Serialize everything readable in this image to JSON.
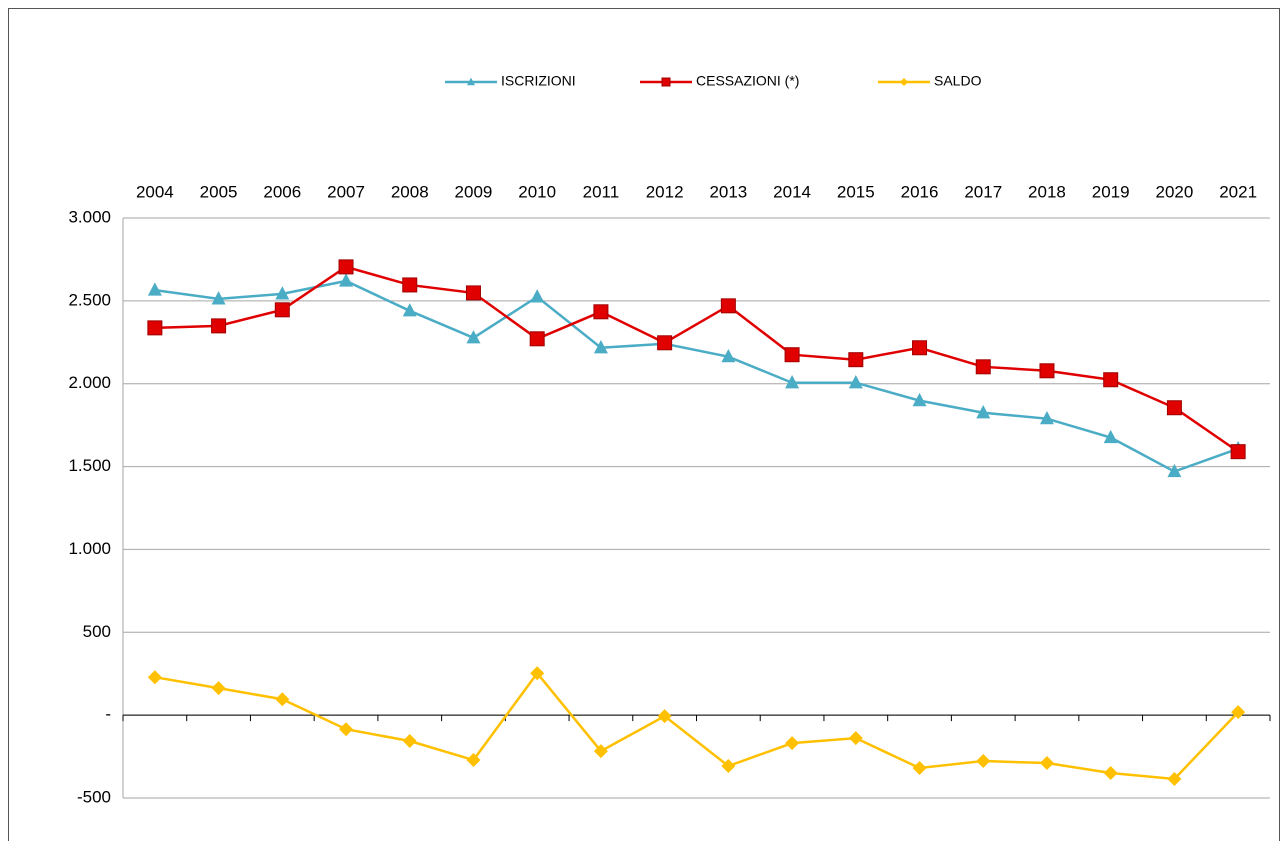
{
  "chart_data": {
    "type": "line",
    "categories": [
      "2004",
      "2005",
      "2006",
      "2007",
      "2008",
      "2009",
      "2010",
      "2011",
      "2012",
      "2013",
      "2014",
      "2015",
      "2016",
      "2017",
      "2018",
      "2019",
      "2020",
      "2021"
    ],
    "series": [
      {
        "name": "ISCRIZIONI",
        "color": "#4bacc6",
        "marker": "triangle",
        "values": [
          2565,
          2512,
          2542,
          2620,
          2440,
          2277,
          2524,
          2217,
          2241,
          2163,
          2006,
          2006,
          1898,
          1825,
          1789,
          1675,
          1470,
          1608
        ]
      },
      {
        "name": "CESSAZIONI (*)",
        "color": "#e00000",
        "marker": "square",
        "values": [
          2337,
          2349,
          2446,
          2705,
          2596,
          2548,
          2271,
          2434,
          2247,
          2470,
          2175,
          2145,
          2217,
          2102,
          2078,
          2024,
          1855,
          1590
        ]
      },
      {
        "name": "SALDO",
        "color": "#ffc000",
        "marker": "diamond",
        "values": [
          229,
          163,
          96,
          -85,
          -156,
          -271,
          253,
          -217,
          -6,
          -307,
          -169,
          -139,
          -319,
          -277,
          -289,
          -349,
          -385,
          18
        ]
      }
    ],
    "ylim": [
      -500,
      3000
    ],
    "yticks": [
      -500,
      {
        "value": 0,
        "label": "-"
      },
      500,
      {
        "value": 1000,
        "label": "1.000"
      },
      {
        "value": 1500,
        "label": "1.500"
      },
      {
        "value": 2000,
        "label": "2.000"
      },
      {
        "value": 2500,
        "label": "2.500"
      },
      {
        "value": 3000,
        "label": "3.000"
      }
    ],
    "grid": true,
    "legend": "top"
  }
}
